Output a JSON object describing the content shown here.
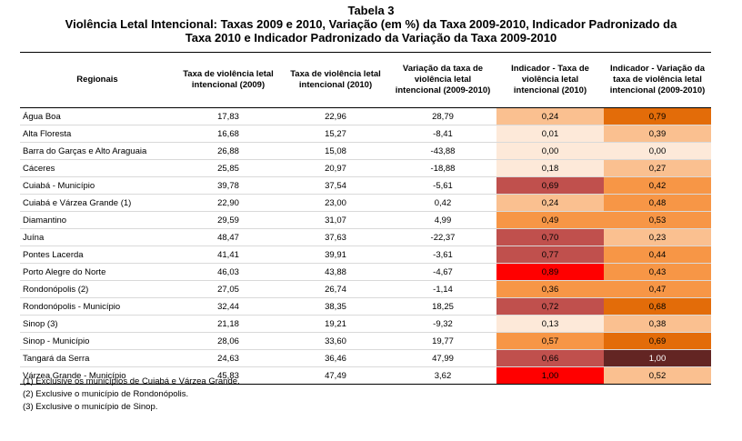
{
  "title": {
    "line1": "Tabela 3",
    "line2": "Violência Letal Intencional: Taxas 2009 e 2010, Variação (em %) da Taxa 2009-2010, Indicador Padronizado da",
    "line3": "Taxa 2010 e Indicador Padronizado da Variação da Taxa 2009-2010"
  },
  "headers": [
    "Regionais",
    "Taxa de violência letal intencional (2009)",
    "Taxa de violência letal intencional (2010)",
    "Variação da taxa de violência letal intencional (2009-2010)",
    "Indicador - Taxa de violência letal intencional (2010)",
    "Indicador - Variação da taxa de violência letal intencional (2009-2010)"
  ],
  "rows": [
    {
      "regional": "Água Boa",
      "t2009": "17,83",
      "t2010": "22,96",
      "var": "28,79",
      "ind2010": "0,24",
      "indvar": "0,79",
      "c1": "#fac090",
      "c2": "#e36c09",
      "f2": "#000"
    },
    {
      "regional": "Alta Floresta",
      "t2009": "16,68",
      "t2010": "15,27",
      "var": "-8,41",
      "ind2010": "0,01",
      "indvar": "0,39",
      "c1": "#fde9d9",
      "c2": "#fac090",
      "f2": "#000"
    },
    {
      "regional": "Barra do Garças e Alto Araguaia",
      "t2009": "26,88",
      "t2010": "15,08",
      "var": "-43,88",
      "ind2010": "0,00",
      "indvar": "0,00",
      "c1": "#fde9d9",
      "c2": "#fde9d9",
      "f2": "#000"
    },
    {
      "regional": "Cáceres",
      "t2009": "25,85",
      "t2010": "20,97",
      "var": "-18,88",
      "ind2010": "0,18",
      "indvar": "0,27",
      "c1": "#fde9d9",
      "c2": "#fac090",
      "f2": "#000"
    },
    {
      "regional": "Cuiabá - Município",
      "t2009": "39,78",
      "t2010": "37,54",
      "var": "-5,61",
      "ind2010": "0,69",
      "indvar": "0,42",
      "c1": "#c0504d",
      "c2": "#f79646",
      "f2": "#000"
    },
    {
      "regional": "Cuiabá e Várzea Grande (1)",
      "t2009": "22,90",
      "t2010": "23,00",
      "var": "0,42",
      "ind2010": "0,24",
      "indvar": "0,48",
      "c1": "#fac090",
      "c2": "#f79646",
      "f2": "#000"
    },
    {
      "regional": "Diamantino",
      "t2009": "29,59",
      "t2010": "31,07",
      "var": "4,99",
      "ind2010": "0,49",
      "indvar": "0,53",
      "c1": "#f79646",
      "c2": "#f79646",
      "f2": "#000"
    },
    {
      "regional": "Juína",
      "t2009": "48,47",
      "t2010": "37,63",
      "var": "-22,37",
      "ind2010": "0,70",
      "indvar": "0,23",
      "c1": "#c0504d",
      "c2": "#fac090",
      "f2": "#000"
    },
    {
      "regional": "Pontes Lacerda",
      "t2009": "41,41",
      "t2010": "39,91",
      "var": "-3,61",
      "ind2010": "0,77",
      "indvar": "0,44",
      "c1": "#c0504d",
      "c2": "#f79646",
      "f2": "#000"
    },
    {
      "regional": "Porto Alegre do Norte",
      "t2009": "46,03",
      "t2010": "43,88",
      "var": "-4,67",
      "ind2010": "0,89",
      "indvar": "0,43",
      "c1": "#ff0000",
      "c2": "#f79646",
      "f2": "#000"
    },
    {
      "regional": "Rondonópolis (2)",
      "t2009": "27,05",
      "t2010": "26,74",
      "var": "-1,14",
      "ind2010": "0,36",
      "indvar": "0,47",
      "c1": "#f79646",
      "c2": "#f79646",
      "f2": "#000"
    },
    {
      "regional": "Rondonópolis - Município",
      "t2009": "32,44",
      "t2010": "38,35",
      "var": "18,25",
      "ind2010": "0,72",
      "indvar": "0,68",
      "c1": "#c0504d",
      "c2": "#e36c09",
      "f2": "#000"
    },
    {
      "regional": "Sinop (3)",
      "t2009": "21,18",
      "t2010": "19,21",
      "var": "-9,32",
      "ind2010": "0,13",
      "indvar": "0,38",
      "c1": "#fde9d9",
      "c2": "#fac090",
      "f2": "#000"
    },
    {
      "regional": "Sinop - Município",
      "t2009": "28,06",
      "t2010": "33,60",
      "var": "19,77",
      "ind2010": "0,57",
      "indvar": "0,69",
      "c1": "#f79646",
      "c2": "#e36c09",
      "f2": "#000"
    },
    {
      "regional": "Tangará da Serra",
      "t2009": "24,63",
      "t2010": "36,46",
      "var": "47,99",
      "ind2010": "0,66",
      "indvar": "1,00",
      "c1": "#c0504d",
      "c2": "#632523",
      "f2": "#ffffff"
    },
    {
      "regional": "Várzea Grande - Município",
      "t2009": "45,83",
      "t2010": "47,49",
      "var": "3,62",
      "ind2010": "1,00",
      "indvar": "0,52",
      "c1": "#ff0000",
      "c2": "#fac090",
      "f2": "#000"
    }
  ],
  "notes": [
    "(1) Exclusive os municípios de Cuiabá e Várzea Grande.",
    "(2) Exclusive o município de Rondonópolis.",
    "(3) Exclusive o município de Sinop."
  ]
}
